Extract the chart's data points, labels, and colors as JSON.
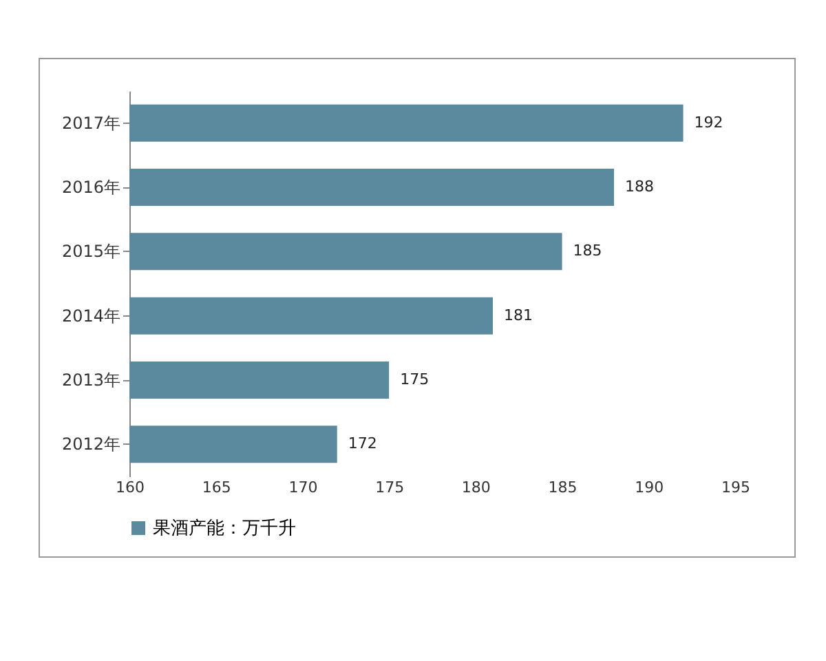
{
  "chart_data": {
    "type": "bar",
    "orientation": "horizontal",
    "categories": [
      "2017年",
      "2016年",
      "2015年",
      "2014年",
      "2013年",
      "2012年"
    ],
    "series": [
      {
        "name": "果酒产能：万千升",
        "color": "#5b8a9e",
        "values": [
          192,
          188,
          185,
          181,
          175,
          172
        ]
      }
    ],
    "xlim": [
      160,
      195
    ],
    "xticks": [
      160,
      165,
      170,
      175,
      180,
      185,
      190,
      195
    ],
    "data_labels": true,
    "legend": "bottom",
    "grid": false
  }
}
